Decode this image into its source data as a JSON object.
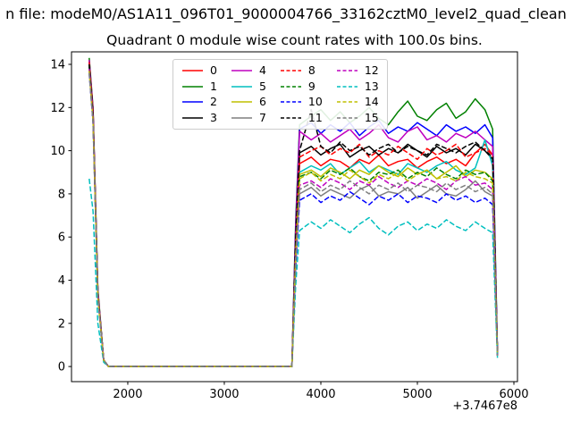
{
  "figure": {
    "suptitle": "n file: modeM0/AS1A11_096T01_9000004766_33162cztM0_level2_quad_clean",
    "background": "#ffffff"
  },
  "chart_data": {
    "type": "line",
    "title": "Quadrant 0 module wise count rates with 100.0s bins.",
    "xlabel": "",
    "ylabel": "",
    "x_offset": "+3.7467e8",
    "xlim": [
      1417,
      6037
    ],
    "ylim": [
      -0.7,
      14.58
    ],
    "x_ticks": [
      2000,
      3000,
      4000,
      5000,
      6000
    ],
    "y_ticks": [
      0,
      2,
      4,
      6,
      8,
      10,
      12,
      14
    ],
    "grid": false,
    "legend_position": "upper center",
    "legend_columns": 4,
    "x": [
      1600,
      1640,
      1690,
      1750,
      1800,
      2000,
      2400,
      2800,
      3200,
      3600,
      3700,
      3740,
      3780,
      3900,
      4000,
      4100,
      4200,
      4300,
      4400,
      4500,
      4600,
      4700,
      4800,
      4900,
      5000,
      5100,
      5200,
      5300,
      5400,
      5500,
      5600,
      5700,
      5780,
      5830
    ],
    "series": [
      {
        "name": "0",
        "color": "#ff0000",
        "linestyle": "solid",
        "values": [
          14.2,
          11.9,
          3.5,
          0.3,
          0,
          0,
          0,
          0,
          0,
          0,
          0,
          5.5,
          9.4,
          9.7,
          9.3,
          9.6,
          9.5,
          9.2,
          9.6,
          9.4,
          9.8,
          9.3,
          9.5,
          9.6,
          9.2,
          9.5,
          9.7,
          9.4,
          9.6,
          9.3,
          9.9,
          10.3,
          9.8,
          0.6
        ]
      },
      {
        "name": "1",
        "color": "#008000",
        "linestyle": "solid",
        "values": [
          14.3,
          12.0,
          3.6,
          0.3,
          0,
          0,
          0,
          0,
          0,
          0,
          0,
          6.8,
          11.2,
          11.6,
          11.9,
          11.4,
          11.8,
          11.3,
          11.6,
          12.0,
          11.5,
          11.2,
          11.8,
          12.3,
          11.6,
          11.4,
          11.9,
          12.2,
          11.5,
          11.8,
          12.4,
          11.9,
          11.0,
          0.7
        ]
      },
      {
        "name": "2",
        "color": "#0000ff",
        "linestyle": "solid",
        "values": [
          14.1,
          11.8,
          3.4,
          0.3,
          0,
          0,
          0,
          0,
          0,
          0,
          0,
          6.5,
          11.0,
          11.3,
          10.8,
          11.2,
          10.9,
          11.3,
          10.7,
          11.1,
          11.4,
          10.8,
          11.1,
          10.9,
          11.3,
          11.0,
          10.7,
          11.2,
          10.9,
          11.1,
          10.8,
          11.2,
          10.6,
          0.6
        ]
      },
      {
        "name": "3",
        "color": "#000000",
        "linestyle": "solid",
        "values": [
          14.0,
          11.7,
          3.4,
          0.3,
          0,
          0,
          0,
          0,
          0,
          0,
          0,
          6.0,
          9.9,
          10.2,
          9.8,
          10.1,
          10.3,
          9.7,
          10.0,
          10.2,
          9.8,
          10.1,
          9.9,
          10.3,
          10.0,
          9.7,
          10.2,
          9.9,
          10.1,
          9.8,
          10.3,
          10.0,
          9.6,
          0.6
        ]
      },
      {
        "name": "4",
        "color": "#bf00bf",
        "linestyle": "solid",
        "values": [
          14.2,
          11.9,
          3.5,
          0.3,
          0,
          0,
          0,
          0,
          0,
          0,
          0,
          6.4,
          10.9,
          10.5,
          10.8,
          10.4,
          10.7,
          11.0,
          10.5,
          10.8,
          11.2,
          10.6,
          10.4,
          10.9,
          11.1,
          10.5,
          10.7,
          10.4,
          10.8,
          10.6,
          10.9,
          10.5,
          10.2,
          0.6
        ]
      },
      {
        "name": "5",
        "color": "#00bfbf",
        "linestyle": "solid",
        "values": [
          13.9,
          11.6,
          3.3,
          0.3,
          0,
          0,
          0,
          0,
          0,
          0,
          0,
          5.4,
          9.0,
          9.3,
          9.1,
          9.4,
          8.9,
          9.2,
          9.5,
          9.0,
          9.3,
          9.1,
          8.9,
          9.4,
          9.2,
          9.0,
          9.3,
          9.5,
          9.1,
          8.9,
          9.2,
          10.5,
          9.3,
          0.6
        ]
      },
      {
        "name": "6",
        "color": "#bfbf00",
        "linestyle": "solid",
        "values": [
          13.8,
          11.5,
          3.3,
          0.3,
          0,
          0,
          0,
          0,
          0,
          0,
          0,
          5.3,
          8.9,
          9.1,
          8.8,
          9.2,
          9.0,
          8.7,
          9.1,
          8.9,
          9.3,
          9.0,
          8.8,
          9.2,
          8.9,
          9.1,
          8.7,
          9.0,
          9.3,
          8.8,
          9.1,
          9.0,
          8.7,
          0.5
        ]
      },
      {
        "name": "7",
        "color": "#7f7f7f",
        "linestyle": "solid",
        "values": [
          13.7,
          11.4,
          3.2,
          0.3,
          0,
          0,
          0,
          0,
          0,
          0,
          0,
          4.8,
          8.0,
          8.3,
          7.9,
          8.2,
          8.0,
          7.8,
          8.2,
          8.4,
          7.9,
          8.1,
          8.0,
          8.3,
          7.8,
          8.1,
          8.4,
          8.0,
          7.9,
          8.2,
          8.6,
          8.1,
          7.9,
          0.5
        ]
      },
      {
        "name": "8",
        "color": "#ff0000",
        "linestyle": "dashed",
        "values": [
          14.1,
          11.8,
          3.4,
          0.3,
          0,
          0,
          0,
          0,
          0,
          0,
          0,
          5.8,
          9.7,
          10.0,
          10.2,
          9.8,
          10.1,
          9.9,
          10.3,
          9.7,
          10.0,
          9.8,
          10.2,
          9.9,
          9.6,
          10.1,
          9.8,
          10.0,
          10.3,
          9.7,
          9.9,
          10.1,
          9.8,
          0.6
        ]
      },
      {
        "name": "9",
        "color": "#008000",
        "linestyle": "dashed",
        "values": [
          13.9,
          11.6,
          3.3,
          0.3,
          0,
          0,
          0,
          0,
          0,
          0,
          0,
          5.3,
          8.8,
          9.0,
          8.7,
          9.1,
          8.9,
          9.2,
          8.8,
          8.6,
          9.0,
          8.9,
          9.1,
          8.7,
          9.0,
          8.8,
          9.2,
          8.9,
          8.7,
          9.1,
          8.9,
          9.0,
          8.6,
          0.5
        ]
      },
      {
        "name": "10",
        "color": "#0000ff",
        "linestyle": "dashed",
        "values": [
          13.6,
          11.3,
          3.2,
          0.3,
          0,
          0,
          0,
          0,
          0,
          0,
          0,
          4.6,
          7.7,
          8.0,
          7.6,
          7.9,
          7.7,
          8.1,
          7.8,
          7.5,
          7.9,
          7.7,
          8.0,
          7.6,
          7.9,
          7.8,
          7.6,
          8.0,
          7.7,
          7.9,
          7.6,
          7.8,
          7.5,
          0.5
        ]
      },
      {
        "name": "11",
        "color": "#000000",
        "linestyle": "dashed",
        "values": [
          14.0,
          11.7,
          3.4,
          0.3,
          0,
          0,
          0,
          0,
          0,
          0,
          0,
          6.0,
          10.0,
          11.9,
          10.2,
          9.9,
          10.4,
          10.0,
          10.2,
          9.8,
          10.1,
          10.3,
          9.9,
          10.2,
          10.0,
          9.8,
          10.3,
          10.1,
          9.9,
          10.2,
          10.4,
          10.0,
          9.7,
          0.6
        ]
      },
      {
        "name": "12",
        "color": "#bf00bf",
        "linestyle": "dashed",
        "values": [
          13.8,
          11.5,
          3.3,
          0.3,
          0,
          0,
          0,
          0,
          0,
          0,
          0,
          5.0,
          8.4,
          8.6,
          8.3,
          8.7,
          8.5,
          8.2,
          8.6,
          8.4,
          8.8,
          8.5,
          8.3,
          8.6,
          8.4,
          8.7,
          8.5,
          8.2,
          8.6,
          8.8,
          8.4,
          8.5,
          8.2,
          0.5
        ]
      },
      {
        "name": "13",
        "color": "#00bfbf",
        "linestyle": "dashed",
        "values": [
          8.7,
          7.2,
          2.0,
          0.2,
          0,
          0,
          0,
          0,
          0,
          0,
          0,
          3.8,
          6.3,
          6.7,
          6.4,
          6.8,
          6.5,
          6.2,
          6.6,
          6.9,
          6.4,
          6.1,
          6.5,
          6.7,
          6.3,
          6.6,
          6.4,
          6.8,
          6.5,
          6.3,
          6.7,
          6.4,
          6.2,
          0.4
        ]
      },
      {
        "name": "14",
        "color": "#bfbf00",
        "linestyle": "dashed",
        "values": [
          13.7,
          11.4,
          3.2,
          0.3,
          0,
          0,
          0,
          0,
          0,
          0,
          0,
          5.2,
          8.7,
          9.0,
          8.6,
          8.9,
          8.7,
          9.1,
          8.8,
          8.5,
          8.9,
          8.7,
          9.0,
          8.6,
          8.9,
          9.1,
          8.7,
          8.8,
          8.6,
          9.0,
          8.8,
          8.7,
          8.5,
          0.5
        ]
      },
      {
        "name": "15",
        "color": "#7f7f7f",
        "linestyle": "dashed",
        "values": [
          13.6,
          11.3,
          3.2,
          0.3,
          0,
          0,
          0,
          0,
          0,
          0,
          0,
          4.9,
          8.2,
          8.5,
          8.1,
          8.4,
          8.2,
          8.6,
          8.3,
          8.0,
          8.4,
          8.2,
          8.5,
          8.1,
          8.4,
          8.3,
          8.1,
          8.5,
          8.2,
          8.4,
          8.1,
          8.3,
          8.0,
          0.5
        ]
      }
    ]
  }
}
